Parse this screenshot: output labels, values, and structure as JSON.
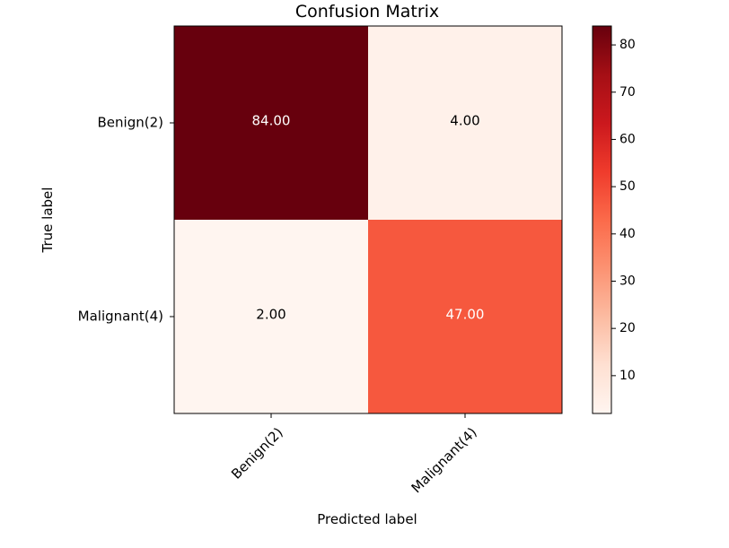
{
  "chart_data": {
    "type": "heatmap",
    "title": "Confusion Matrix",
    "xlabel": "Predicted label",
    "ylabel": "True label",
    "x_categories": [
      "Benign(2)",
      "Malignant(4)"
    ],
    "y_categories": [
      "Benign(2)",
      "Malignant(4)"
    ],
    "values": [
      [
        84,
        4
      ],
      [
        2,
        47
      ]
    ],
    "value_labels": [
      [
        "84.00",
        "4.00"
      ],
      [
        "2.00",
        "47.00"
      ]
    ],
    "colormap": "Reds",
    "value_range": [
      2,
      84
    ],
    "colorbar_ticks": [
      10,
      20,
      30,
      40,
      50,
      60,
      70,
      80
    ],
    "colorbar_tick_labels": [
      "10",
      "20",
      "30",
      "40",
      "50",
      "60",
      "70",
      "80"
    ],
    "text_colors": {
      "light_cell": "#000000",
      "dark_cell": "#ffffff"
    }
  }
}
